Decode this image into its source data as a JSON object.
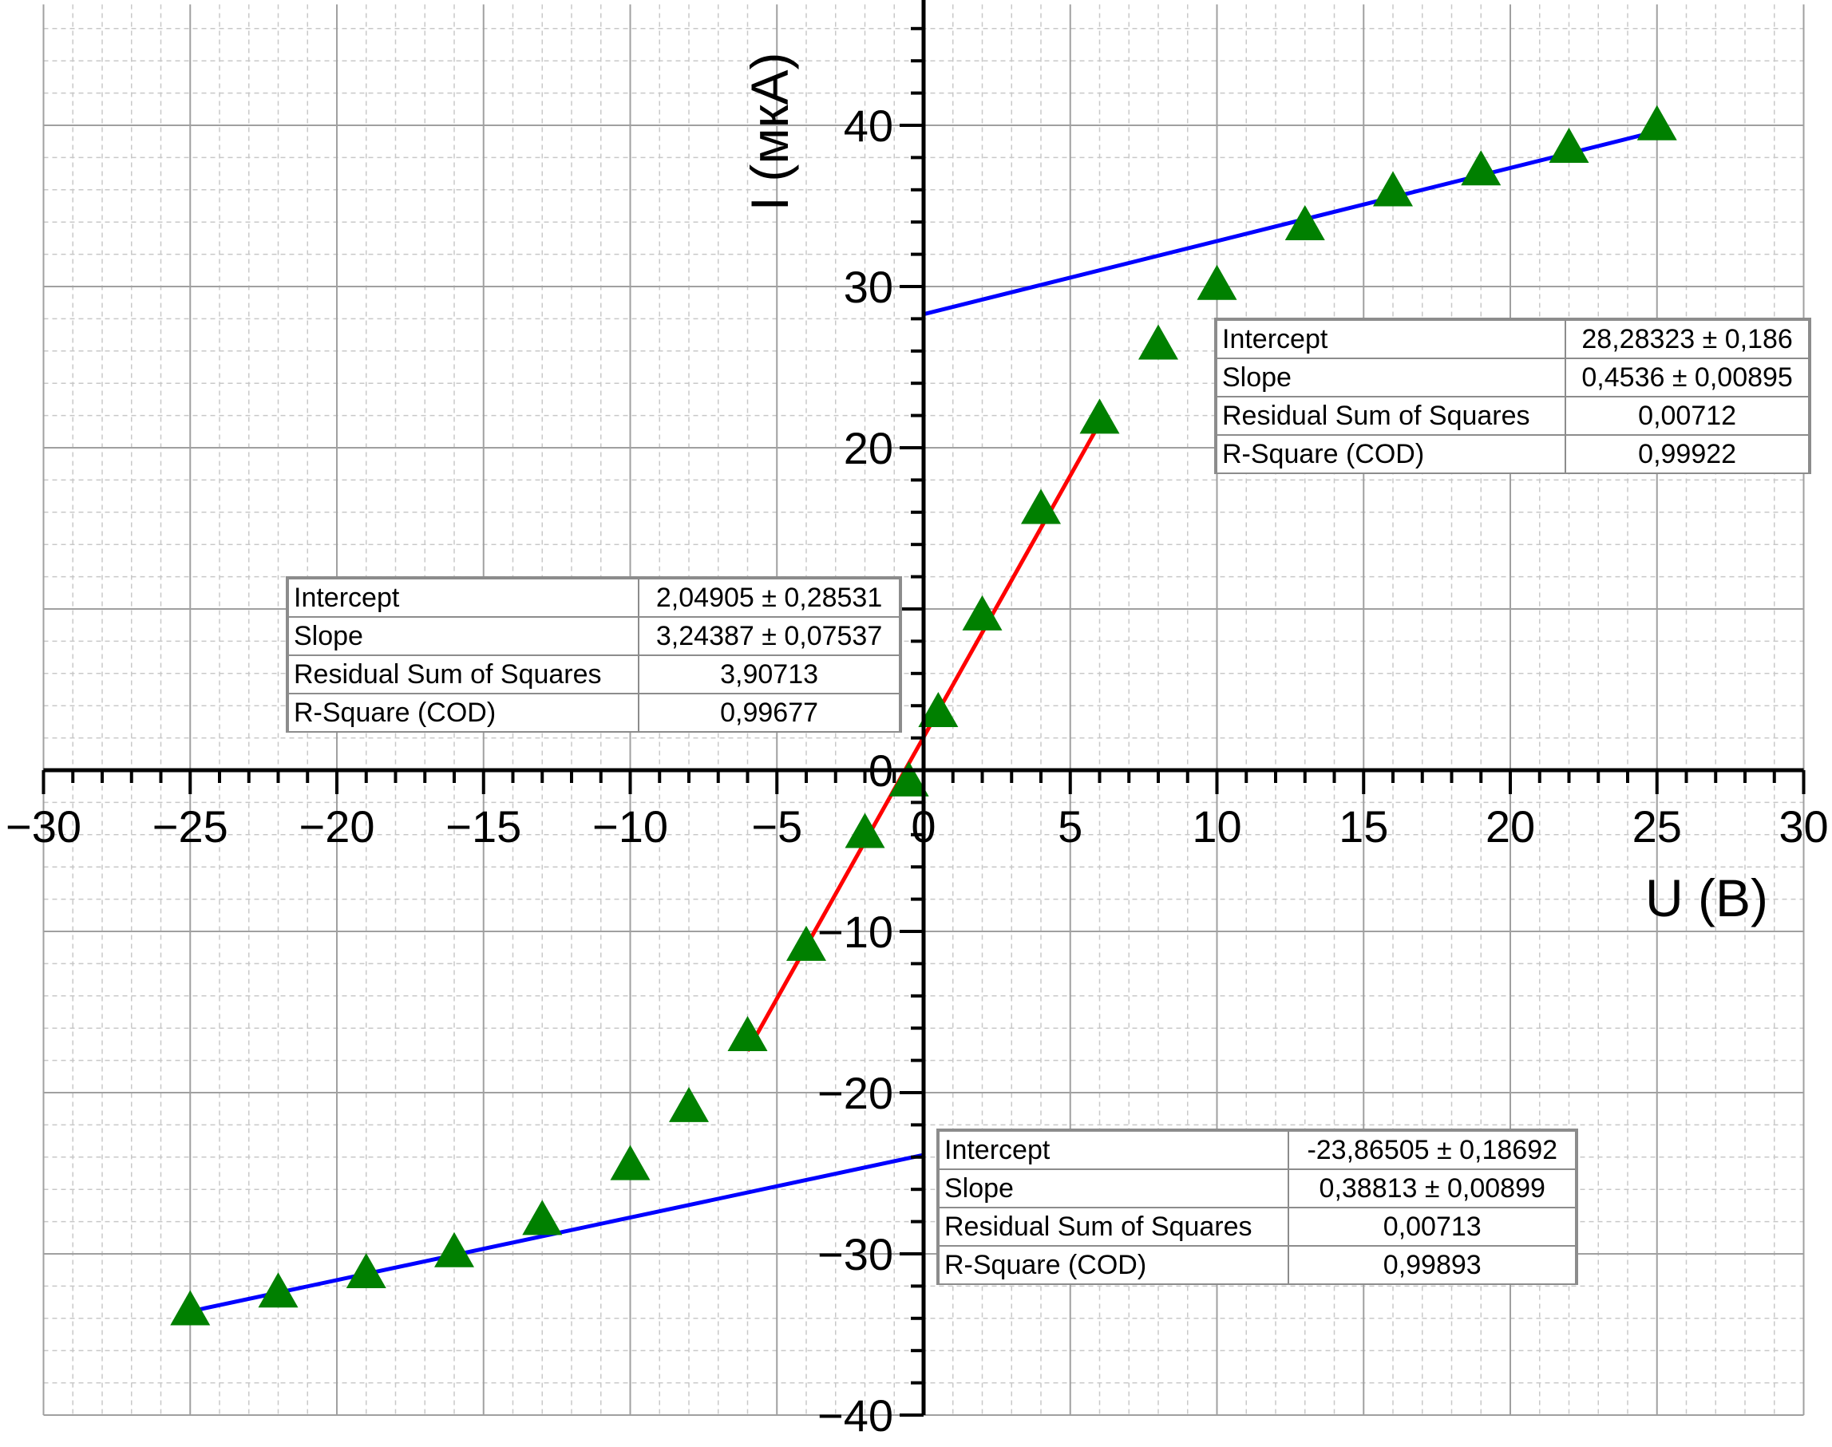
{
  "chart_data": {
    "type": "scatter",
    "title": "",
    "xlabel": "U (В)",
    "ylabel": "I (мкА)",
    "xlim": [
      -30,
      30
    ],
    "ylim": [
      -40,
      47.5
    ],
    "x_ticks": [
      -30,
      -25,
      -20,
      -15,
      -10,
      -5,
      0,
      5,
      10,
      15,
      20,
      25,
      30
    ],
    "y_ticks": [
      -40,
      -30,
      -20,
      -10,
      0,
      10,
      20,
      30,
      40
    ],
    "y_tick_labels": [
      "−40",
      "−30",
      "−20",
      "−10",
      "0",
      "",
      "20",
      "30",
      "40"
    ],
    "x_tick_labels": [
      "−30",
      "−25",
      "−20",
      "−15",
      "−10",
      "−5",
      "0",
      "5",
      "10",
      "15",
      "20",
      "25",
      "30"
    ],
    "grid": true,
    "series": [
      {
        "marker": "triangle",
        "color": "#008000",
        "x": [
          -25,
          -22,
          -19,
          -16,
          -13,
          -10,
          -8,
          -6,
          -4,
          -2,
          -0.5,
          0.5,
          2,
          4,
          6,
          8,
          10,
          13,
          16,
          19,
          22,
          25
        ],
        "y": [
          -33.6,
          -32.5,
          -31.3,
          -30.0,
          -28.0,
          -24.6,
          -21.0,
          -16.6,
          -11.0,
          -4.0,
          -0.8,
          3.5,
          9.5,
          16.1,
          21.7,
          26.3,
          30.0,
          33.7,
          35.8,
          37.1,
          38.5,
          39.9
        ]
      }
    ],
    "fits": [
      {
        "color": "#0000ff",
        "x_range": [
          0,
          25
        ],
        "intercept": 28.28323,
        "slope": 0.4536
      },
      {
        "color": "#ff0000",
        "x_range": [
          -6,
          6
        ],
        "intercept": 2.04905,
        "slope": 3.24387
      },
      {
        "color": "#0000ff",
        "x_range": [
          -25,
          0
        ],
        "intercept": -23.86505,
        "slope": 0.38813
      }
    ],
    "stats_tables": [
      {
        "rows": [
          {
            "label": "Intercept",
            "value": "28,28323 ± 0,186"
          },
          {
            "label": "Slope",
            "value": "0,4536 ± 0,00895"
          },
          {
            "label": "Residual Sum of Squares",
            "value": "0,00712"
          },
          {
            "label": "R-Square (COD)",
            "value": "0,99922"
          }
        ]
      },
      {
        "rows": [
          {
            "label": "Intercept",
            "value": "2,04905 ± 0,28531"
          },
          {
            "label": "Slope",
            "value": "3,24387 ± 0,07537"
          },
          {
            "label": "Residual Sum of Squares",
            "value": "3,90713"
          },
          {
            "label": "R-Square (COD)",
            "value": "0,99677"
          }
        ]
      },
      {
        "rows": [
          {
            "label": "Intercept",
            "value": "-23,86505 ± 0,18692"
          },
          {
            "label": "Slope",
            "value": "0,38813 ± 0,00899"
          },
          {
            "label": "Residual Sum of Squares",
            "value": "0,00713"
          },
          {
            "label": "R-Square (COD)",
            "value": "0,99893"
          }
        ]
      }
    ]
  }
}
